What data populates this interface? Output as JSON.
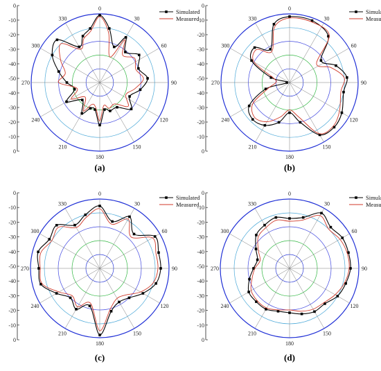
{
  "figure": {
    "captions": [
      "(a)",
      "(b)",
      "(c)",
      "(d)"
    ]
  },
  "chart_data": [
    {
      "type": "polar-line",
      "caption": "(a)",
      "radial_range": [
        -50,
        0
      ],
      "radial_ticks": [
        0,
        -10,
        -20,
        -30,
        -40,
        -50,
        -40,
        -30,
        -20,
        -10,
        0
      ],
      "angle_ticks": [
        0,
        30,
        60,
        90,
        120,
        150,
        180,
        210,
        240,
        270,
        300,
        330
      ],
      "legend": {
        "placement": "top-right",
        "entries": [
          "Simulated",
          "Measured"
        ]
      },
      "series": [
        {
          "name": "Simulated",
          "points": [
            [
              0,
              -1
            ],
            [
              10,
              -10
            ],
            [
              22,
              -22
            ],
            [
              30,
              -12
            ],
            [
              40,
              -21
            ],
            [
              55,
              -15
            ],
            [
              70,
              -20
            ],
            [
              85,
              -15
            ],
            [
              100,
              -20
            ],
            [
              115,
              -26
            ],
            [
              130,
              -20
            ],
            [
              145,
              -28
            ],
            [
              160,
              -28
            ],
            [
              170,
              -30
            ],
            [
              180,
              -19
            ],
            [
              190,
              -30
            ],
            [
              200,
              -30
            ],
            [
              210,
              -24
            ],
            [
              225,
              -32
            ],
            [
              240,
              -22
            ],
            [
              255,
              -31
            ],
            [
              270,
              -26
            ],
            [
              285,
              -19
            ],
            [
              300,
              -10
            ],
            [
              315,
              -6
            ],
            [
              330,
              -20
            ],
            [
              340,
              -14
            ],
            [
              350,
              -10
            ]
          ]
        },
        {
          "name": "Measured",
          "points": [
            [
              0,
              -2
            ],
            [
              10,
              -13
            ],
            [
              22,
              -30
            ],
            [
              30,
              -14
            ],
            [
              40,
              -24
            ],
            [
              55,
              -19
            ],
            [
              70,
              -22
            ],
            [
              85,
              -18
            ],
            [
              100,
              -24
            ],
            [
              115,
              -29
            ],
            [
              130,
              -23
            ],
            [
              145,
              -31
            ],
            [
              160,
              -30
            ],
            [
              170,
              -33
            ],
            [
              180,
              -22
            ],
            [
              190,
              -32
            ],
            [
              200,
              -33
            ],
            [
              210,
              -26
            ],
            [
              225,
              -35
            ],
            [
              240,
              -26
            ],
            [
              255,
              -33
            ],
            [
              270,
              -20
            ],
            [
              285,
              -24
            ],
            [
              300,
              -17
            ],
            [
              315,
              -10
            ],
            [
              330,
              -22
            ],
            [
              340,
              -16
            ],
            [
              350,
              -12
            ]
          ]
        }
      ]
    },
    {
      "type": "polar-line",
      "caption": "(b)",
      "radial_range": [
        -50,
        0
      ],
      "radial_ticks": [
        0,
        -10,
        -20,
        -30,
        -40,
        -50,
        -40,
        -30,
        -20,
        -10,
        0
      ],
      "angle_ticks": [
        0,
        30,
        60,
        90,
        120,
        150,
        180,
        210,
        240,
        270,
        300,
        330
      ],
      "legend": {
        "placement": "top-right",
        "entries": [
          "Simulated",
          "Measured"
        ]
      },
      "series": [
        {
          "name": "Simulated",
          "points": [
            [
              0,
              -2
            ],
            [
              20,
              -2
            ],
            [
              40,
              -6
            ],
            [
              55,
              -22
            ],
            [
              70,
              -14
            ],
            [
              85,
              -8
            ],
            [
              100,
              -10
            ],
            [
              120,
              -6
            ],
            [
              135,
              -4
            ],
            [
              150,
              -6
            ],
            [
              165,
              -20
            ],
            [
              180,
              -28
            ],
            [
              195,
              -20
            ],
            [
              210,
              -14
            ],
            [
              225,
              -12
            ],
            [
              240,
              -16
            ],
            [
              255,
              -32
            ],
            [
              270,
              -48
            ],
            [
              285,
              -36
            ],
            [
              300,
              -18
            ],
            [
              315,
              -14
            ],
            [
              330,
              -22
            ],
            [
              345,
              -6
            ]
          ]
        },
        {
          "name": "Measured",
          "points": [
            [
              0,
              -3
            ],
            [
              20,
              -3
            ],
            [
              40,
              -5
            ],
            [
              55,
              -26
            ],
            [
              70,
              -18
            ],
            [
              85,
              -10
            ],
            [
              100,
              -12
            ],
            [
              120,
              -8
            ],
            [
              135,
              -5
            ],
            [
              150,
              -7
            ],
            [
              165,
              -24
            ],
            [
              180,
              -30
            ],
            [
              195,
              -24
            ],
            [
              210,
              -17
            ],
            [
              225,
              -14
            ],
            [
              240,
              -19
            ],
            [
              255,
              -34
            ],
            [
              270,
              -40
            ],
            [
              285,
              -38
            ],
            [
              300,
              -20
            ],
            [
              315,
              -16
            ],
            [
              330,
              -24
            ],
            [
              345,
              -8
            ]
          ]
        }
      ]
    },
    {
      "type": "polar-line",
      "caption": "(c)",
      "radial_range": [
        -50,
        0
      ],
      "radial_ticks": [
        0,
        -10,
        -20,
        -30,
        -40,
        -50,
        -40,
        -30,
        -20,
        -10,
        0
      ],
      "angle_ticks": [
        0,
        30,
        60,
        90,
        120,
        150,
        180,
        210,
        240,
        270,
        300,
        330
      ],
      "legend": {
        "placement": "top-right",
        "entries": [
          "Simulated",
          "Measured"
        ]
      },
      "series": [
        {
          "name": "Simulated",
          "points": [
            [
              0,
              -5
            ],
            [
              15,
              -15
            ],
            [
              30,
              -7
            ],
            [
              45,
              -15
            ],
            [
              60,
              -4
            ],
            [
              75,
              -6
            ],
            [
              90,
              -6
            ],
            [
              105,
              -8
            ],
            [
              120,
              -14
            ],
            [
              135,
              -20
            ],
            [
              150,
              -22
            ],
            [
              165,
              -18
            ],
            [
              180,
              -2
            ],
            [
              195,
              -22
            ],
            [
              210,
              -16
            ],
            [
              225,
              -20
            ],
            [
              240,
              -14
            ],
            [
              255,
              -6
            ],
            [
              270,
              -6
            ],
            [
              285,
              -4
            ],
            [
              300,
              -8
            ],
            [
              315,
              -6
            ],
            [
              330,
              -14
            ],
            [
              345,
              -10
            ]
          ]
        },
        {
          "name": "Measured",
          "points": [
            [
              0,
              -7
            ],
            [
              15,
              -17
            ],
            [
              30,
              -9
            ],
            [
              45,
              -18
            ],
            [
              60,
              -6
            ],
            [
              75,
              -8
            ],
            [
              90,
              -8
            ],
            [
              105,
              -10
            ],
            [
              120,
              -16
            ],
            [
              135,
              -23
            ],
            [
              150,
              -25
            ],
            [
              165,
              -20
            ],
            [
              180,
              -5
            ],
            [
              195,
              -24
            ],
            [
              210,
              -18
            ],
            [
              225,
              -22
            ],
            [
              240,
              -16
            ],
            [
              255,
              -7
            ],
            [
              270,
              -7
            ],
            [
              285,
              -6
            ],
            [
              300,
              -10
            ],
            [
              315,
              -8
            ],
            [
              330,
              -16
            ],
            [
              345,
              -12
            ]
          ]
        }
      ]
    },
    {
      "type": "polar-line",
      "caption": "(d)",
      "radial_range": [
        -50,
        0
      ],
      "radial_ticks": [
        0,
        -10,
        -20,
        -30,
        -40,
        -50,
        -40,
        -30,
        -20,
        -10,
        0
      ],
      "angle_ticks": [
        0,
        30,
        60,
        90,
        120,
        150,
        180,
        210,
        240,
        270,
        300,
        330
      ],
      "legend": {
        "placement": "top-right",
        "entries": [
          "Simulated",
          "Measured"
        ]
      },
      "series": [
        {
          "name": "Simulated",
          "points": [
            [
              0,
              -14
            ],
            [
              15,
              -12
            ],
            [
              30,
              -4
            ],
            [
              45,
              -8
            ],
            [
              60,
              -6
            ],
            [
              75,
              -6
            ],
            [
              90,
              -6
            ],
            [
              105,
              -8
            ],
            [
              120,
              -10
            ],
            [
              135,
              -14
            ],
            [
              150,
              -14
            ],
            [
              165,
              -16
            ],
            [
              180,
              -18
            ],
            [
              195,
              -18
            ],
            [
              210,
              -16
            ],
            [
              225,
              -16
            ],
            [
              240,
              -16
            ],
            [
              255,
              -20
            ],
            [
              270,
              -24
            ],
            [
              285,
              -26
            ],
            [
              300,
              -22
            ],
            [
              315,
              -16
            ],
            [
              330,
              -14
            ],
            [
              345,
              -12
            ]
          ]
        },
        {
          "name": "Measured",
          "points": [
            [
              0,
              -16
            ],
            [
              15,
              -14
            ],
            [
              30,
              -6
            ],
            [
              45,
              -10
            ],
            [
              60,
              -8
            ],
            [
              75,
              -7
            ],
            [
              90,
              -7
            ],
            [
              105,
              -9
            ],
            [
              120,
              -12
            ],
            [
              135,
              -15
            ],
            [
              150,
              -16
            ],
            [
              165,
              -18
            ],
            [
              180,
              -20
            ],
            [
              195,
              -19
            ],
            [
              210,
              -17
            ],
            [
              225,
              -17
            ],
            [
              240,
              -18
            ],
            [
              255,
              -22
            ],
            [
              270,
              -25
            ],
            [
              285,
              -28
            ],
            [
              300,
              -24
            ],
            [
              315,
              -18
            ],
            [
              330,
              -16
            ],
            [
              345,
              -14
            ]
          ]
        }
      ]
    }
  ],
  "styles": {
    "simulated_color": "#000000",
    "measured_color": "#d03a2a",
    "grid_colors": [
      "#1f2fd6",
      "#2a3ad8",
      "#33b844",
      "#3f46e0",
      "#4aa8d8",
      "#1a1a1a"
    ],
    "spoke_color": "#7a7a7a"
  }
}
